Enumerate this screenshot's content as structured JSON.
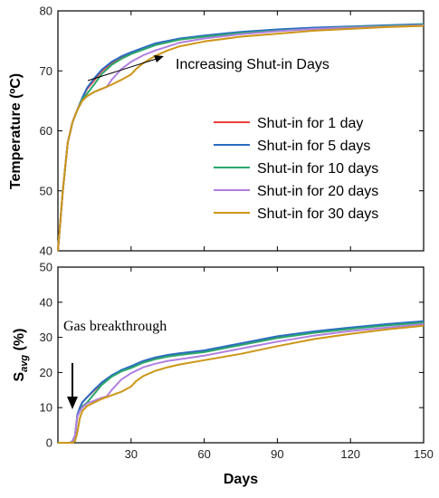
{
  "chart_data": [
    {
      "type": "line",
      "ylabel": "Temperature (ºC)",
      "xlabel": "",
      "xlim": [
        0,
        150
      ],
      "ylim": [
        40,
        80
      ],
      "xticks": [
        30,
        60,
        90,
        120,
        150
      ],
      "yticks": [
        40,
        50,
        60,
        70,
        80
      ],
      "legend_position": "center-right",
      "annotation": "Increasing Shut-in Days",
      "series": [
        {
          "name": "Shut-in for 1 day",
          "color": "#e8413b",
          "x": [
            0,
            2,
            4,
            6,
            8,
            10,
            12,
            15,
            18,
            22,
            26,
            30,
            40,
            50,
            60,
            75,
            90,
            105,
            120,
            135,
            150
          ],
          "y": [
            40,
            50,
            58,
            61.5,
            63.5,
            65.5,
            67,
            68.5,
            70,
            71.3,
            72.2,
            73,
            74.5,
            75.3,
            75.8,
            76.4,
            76.8,
            77.1,
            77.3,
            77.5,
            77.7
          ]
        },
        {
          "name": "Shut-in for 5 days",
          "color": "#2b6cc4",
          "x": [
            0,
            2,
            4,
            6,
            8,
            10,
            12,
            15,
            18,
            22,
            26,
            30,
            40,
            50,
            60,
            75,
            90,
            105,
            120,
            135,
            150
          ],
          "y": [
            40,
            50,
            58,
            61.5,
            63.5,
            65.5,
            67.2,
            68.8,
            70.2,
            71.5,
            72.4,
            73.1,
            74.6,
            75.4,
            75.9,
            76.5,
            76.9,
            77.2,
            77.4,
            77.6,
            77.8
          ]
        },
        {
          "name": "Shut-in for 10 days",
          "color": "#2aa86a",
          "x": [
            0,
            2,
            4,
            6,
            8,
            10,
            12,
            15,
            18,
            22,
            26,
            30,
            40,
            50,
            60,
            75,
            90,
            105,
            120,
            135,
            150
          ],
          "y": [
            40,
            50,
            58,
            61.5,
            63.5,
            65.3,
            66.2,
            67.8,
            69.5,
            71,
            72,
            72.8,
            74.3,
            75.2,
            75.7,
            76.3,
            76.7,
            77,
            77.3,
            77.5,
            77.7
          ]
        },
        {
          "name": "Shut-in for 20 days",
          "color": "#b07fe0",
          "x": [
            0,
            2,
            4,
            6,
            8,
            10,
            12,
            15,
            18,
            20,
            22,
            26,
            30,
            35,
            40,
            50,
            60,
            75,
            90,
            105,
            120,
            135,
            150
          ],
          "y": [
            40,
            50,
            58,
            61.5,
            63.5,
            65,
            65.8,
            66.5,
            67,
            67.3,
            68.5,
            70.3,
            71.5,
            72.6,
            73.4,
            74.7,
            75.4,
            76.1,
            76.6,
            77,
            77.2,
            77.4,
            77.6
          ]
        },
        {
          "name": "Shut-in for 30 days",
          "color": "#cc9616",
          "x": [
            0,
            2,
            4,
            6,
            8,
            10,
            12,
            15,
            18,
            22,
            26,
            30,
            32,
            35,
            40,
            45,
            50,
            60,
            75,
            90,
            105,
            120,
            135,
            150
          ],
          "y": [
            40,
            50,
            58,
            61.5,
            63.5,
            65,
            65.8,
            66.5,
            67,
            67.7,
            68.5,
            69.4,
            70.3,
            71.3,
            72.5,
            73.4,
            74.1,
            74.9,
            75.7,
            76.2,
            76.7,
            77,
            77.3,
            77.5
          ]
        }
      ]
    },
    {
      "type": "line",
      "ylabel": "S",
      "ylabel_sub": "avg",
      "ylabel_unit": " (%)",
      "xlabel": "Days",
      "xlim": [
        0,
        150
      ],
      "ylim": [
        0,
        50
      ],
      "xticks": [
        30,
        60,
        90,
        120,
        150
      ],
      "yticks": [
        0,
        10,
        20,
        30,
        40,
        50
      ],
      "annotation": "Gas breakthrough",
      "series": [
        {
          "name": "Shut-in for 1 day",
          "color": "#e8413b",
          "x": [
            0,
            5,
            6,
            7,
            8,
            9,
            10,
            12,
            15,
            18,
            22,
            26,
            30,
            35,
            40,
            45,
            50,
            60,
            75,
            90,
            105,
            120,
            135,
            150
          ],
          "y": [
            0,
            0,
            0.5,
            2,
            8,
            10,
            11.5,
            13,
            15,
            17,
            19,
            20.5,
            21.5,
            23,
            24,
            24.8,
            25.3,
            26,
            28,
            30,
            31.5,
            32.5,
            33.5,
            34.3
          ]
        },
        {
          "name": "Shut-in for 5 days",
          "color": "#2b6cc4",
          "x": [
            0,
            5,
            6,
            7,
            8,
            9,
            10,
            12,
            15,
            18,
            22,
            26,
            30,
            35,
            40,
            45,
            50,
            60,
            75,
            90,
            105,
            120,
            135,
            150
          ],
          "y": [
            0,
            0,
            0.5,
            2,
            8,
            10,
            11.5,
            13,
            15.2,
            17.2,
            19.2,
            20.7,
            21.8,
            23.3,
            24.3,
            25,
            25.5,
            26.3,
            28.3,
            30.3,
            31.7,
            32.8,
            33.8,
            34.6
          ]
        },
        {
          "name": "Shut-in for 10 days",
          "color": "#2aa86a",
          "x": [
            0,
            5,
            6,
            7,
            8,
            9,
            10,
            12,
            15,
            18,
            22,
            26,
            30,
            35,
            40,
            45,
            50,
            60,
            75,
            90,
            105,
            120,
            135,
            150
          ],
          "y": [
            0,
            0,
            0.5,
            2,
            7.5,
            9,
            10.3,
            11.5,
            14,
            16.5,
            18.8,
            20.3,
            21.3,
            22.8,
            23.8,
            24.5,
            25,
            25.8,
            27.8,
            29.8,
            31.3,
            32.4,
            33.4,
            34.2
          ]
        },
        {
          "name": "Shut-in for 20 days",
          "color": "#b07fe0",
          "x": [
            0,
            5,
            6,
            7,
            8,
            9,
            10,
            12,
            15,
            18,
            20,
            22,
            26,
            30,
            35,
            40,
            45,
            50,
            60,
            75,
            90,
            105,
            120,
            135,
            150
          ],
          "y": [
            0,
            0,
            0.5,
            2,
            7.5,
            9,
            10,
            11.2,
            12,
            12.8,
            13.2,
            15,
            18,
            19.8,
            21.5,
            22.5,
            23.3,
            23.8,
            24.8,
            26.8,
            28.8,
            30.5,
            31.8,
            32.8,
            33.8
          ]
        },
        {
          "name": "Shut-in for 30 days",
          "color": "#cc9616",
          "x": [
            0,
            6,
            7,
            8,
            9,
            10,
            12,
            15,
            18,
            22,
            26,
            30,
            32,
            35,
            40,
            45,
            50,
            60,
            75,
            90,
            105,
            120,
            135,
            150
          ],
          "y": [
            0,
            0,
            0.5,
            3,
            7,
            9,
            10.5,
            11.5,
            12.5,
            13.5,
            14.5,
            16,
            17.5,
            19,
            20.5,
            21.5,
            22.3,
            23.5,
            25.3,
            27.5,
            29.5,
            31,
            32.3,
            33.3
          ]
        }
      ]
    }
  ]
}
